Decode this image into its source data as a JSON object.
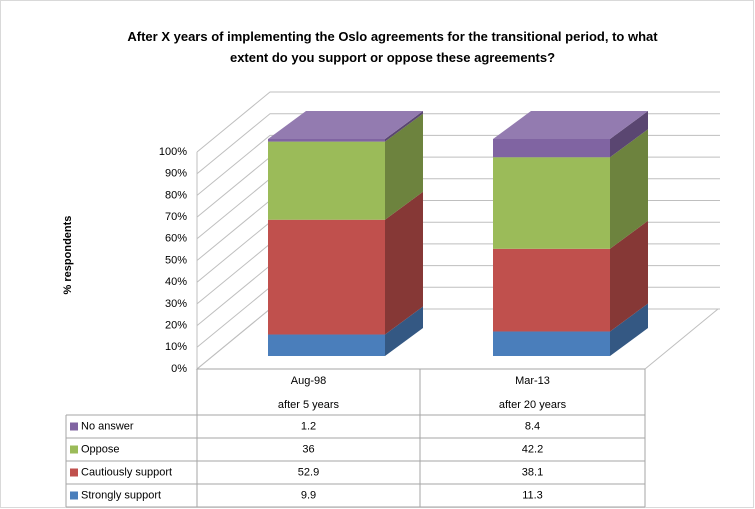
{
  "chart_data": {
    "type": "bar3d_stacked",
    "title": "After X years of implementing the Oslo agreements for the transitional period, to what extent do you support or oppose these agreements?",
    "ylabel": "% respondents",
    "categories": [
      "Aug-98",
      "Mar-13"
    ],
    "category_sublabels": [
      "after 5 years",
      "after 20 years"
    ],
    "series": [
      {
        "name": "Strongly support",
        "color": "#4a7ebb",
        "values": [
          9.9,
          11.3
        ]
      },
      {
        "name": "Cautiously support",
        "color": "#c0504d",
        "values": [
          52.9,
          38.1
        ]
      },
      {
        "name": "Oppose",
        "color": "#9bbb59",
        "values": [
          36,
          42.2
        ]
      },
      {
        "name": "No answer",
        "color": "#8064a2",
        "values": [
          1.2,
          8.4
        ]
      }
    ],
    "ylim": [
      0,
      100
    ],
    "yticks": [
      {
        "value": 0,
        "label": "0%"
      },
      {
        "value": 10,
        "label": "10%"
      },
      {
        "value": 20,
        "label": "20%"
      },
      {
        "value": 30,
        "label": "30%"
      },
      {
        "value": 40,
        "label": "40%"
      },
      {
        "value": 50,
        "label": "50%"
      },
      {
        "value": 60,
        "label": "60%"
      },
      {
        "value": 70,
        "label": "70%"
      },
      {
        "value": 80,
        "label": "80%"
      },
      {
        "value": 90,
        "label": "90%"
      },
      {
        "value": 100,
        "label": "100%"
      }
    ],
    "grid": true
  }
}
